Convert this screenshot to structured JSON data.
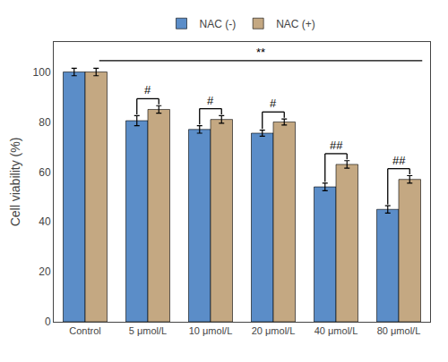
{
  "chart_data": {
    "type": "bar",
    "categories": [
      "Control",
      "5 μmol/L",
      "10 μmol/L",
      "20 μmol/L",
      "40 μmol/L",
      "80 μmol/L"
    ],
    "series": [
      {
        "name": "NAC (-)",
        "color": "#5B8DC8",
        "values": [
          100,
          80.5,
          77,
          75.5,
          54,
          45
        ],
        "errors": [
          1.5,
          2.0,
          1.5,
          1.2,
          1.5,
          1.5
        ]
      },
      {
        "name": "NAC (+)",
        "color": "#C4A882",
        "values": [
          100,
          85,
          81,
          80,
          63,
          57
        ],
        "errors": [
          1.5,
          1.5,
          1.5,
          1.2,
          1.5,
          1.5
        ]
      }
    ],
    "ylabel": "Cell viability (%)",
    "ylim": [
      0,
      112
    ],
    "yticks": [
      0,
      20,
      40,
      60,
      80,
      100
    ],
    "grid": false,
    "legend": "top",
    "annotations": [
      {
        "category": "5 μmol/L",
        "text": "#"
      },
      {
        "category": "10 μmol/L",
        "text": "#"
      },
      {
        "category": "20 μmol/L",
        "text": "#"
      },
      {
        "category": "40 μmol/L",
        "text": "##"
      },
      {
        "category": "80 μmol/L",
        "text": "##"
      }
    ],
    "global_label": "**"
  }
}
